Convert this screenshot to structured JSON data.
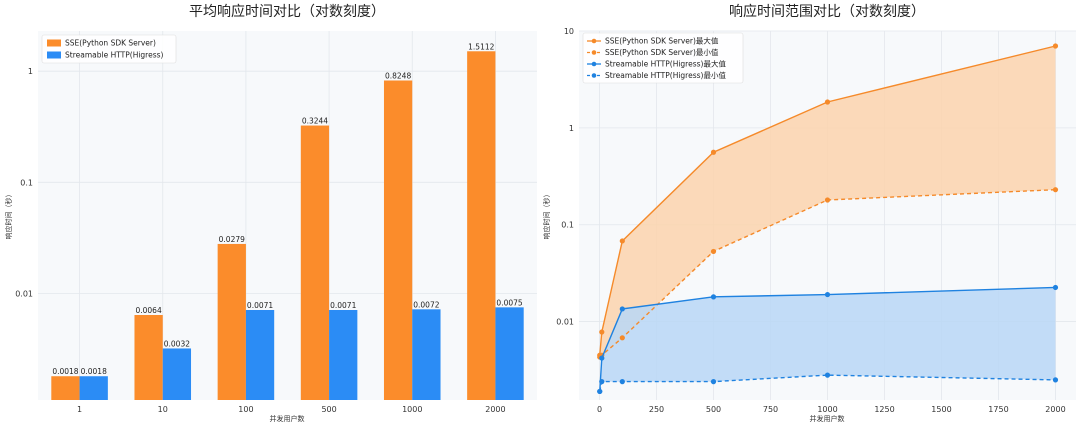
{
  "chart_data": [
    {
      "type": "bar",
      "title": "平均响应时间对比（对数刻度）",
      "xlabel": "并发用户数",
      "ylabel": "响应时间（秒）",
      "yscale": "log",
      "ylim": [
        0.0011,
        2.3
      ],
      "yticks": [
        0.01,
        0.1,
        1
      ],
      "ytick_labels": [
        "0.01",
        "0.1",
        "1"
      ],
      "categories": [
        "1",
        "10",
        "100",
        "500",
        "1000",
        "2000"
      ],
      "series": [
        {
          "name": "SSE(Python SDK Server)",
          "color": "#fb8c2b",
          "values": [
            0.0018,
            0.0064,
            0.0279,
            0.3244,
            0.8248,
            1.5112
          ],
          "labels": [
            "0.0018",
            "0.0064",
            "0.0279",
            "0.3244",
            "0.8248",
            "1.5112"
          ]
        },
        {
          "name": "Streamable HTTP(Higress)",
          "color": "#2b8cf5",
          "values": [
            0.0018,
            0.0032,
            0.0071,
            0.0071,
            0.0072,
            0.0075
          ],
          "labels": [
            "0.0018",
            "0.0032",
            "0.0071",
            "0.0071",
            "0.0072",
            "0.0075"
          ]
        }
      ],
      "grid": true,
      "legend": "top-left"
    },
    {
      "type": "line",
      "title": "响应时间范围对比（对数刻度）",
      "xlabel": "并发用户数",
      "ylabel": "响应时间（秒）",
      "yscale": "log",
      "xlim": [
        -90,
        2090
      ],
      "ylim": [
        0.00155,
        10
      ],
      "xticks": [
        0,
        250,
        500,
        750,
        1000,
        1250,
        1500,
        1750,
        2000
      ],
      "xtick_labels": [
        "0",
        "250",
        "500",
        "750",
        "1000",
        "1250",
        "1500",
        "1750",
        "2000"
      ],
      "yticks": [
        0.01,
        0.1,
        1,
        10
      ],
      "ytick_labels": [
        "0.01",
        "0.1",
        "1",
        "10"
      ],
      "x": [
        1,
        10,
        100,
        500,
        1000,
        2000
      ],
      "series": [
        {
          "name": "SSE(Python SDK Server)最大值",
          "color": "#f58a2a",
          "dash": false,
          "values": [
            0.0045,
            0.0078,
            0.068,
            0.56,
            1.85,
            7.0
          ]
        },
        {
          "name": "SSE(Python SDK Server)最小值",
          "color": "#f58a2a",
          "dash": true,
          "values": [
            0.0043,
            0.0045,
            0.0068,
            0.053,
            0.18,
            0.23
          ]
        },
        {
          "name": "Streamable HTTP(Higress)最大值",
          "color": "#1f82e0",
          "dash": false,
          "values": [
            0.0019,
            0.0042,
            0.0135,
            0.018,
            0.019,
            0.0225
          ]
        },
        {
          "name": "Streamable HTTP(Higress)最小值",
          "color": "#1f82e0",
          "dash": true,
          "values": [
            0.0019,
            0.0024,
            0.0024,
            0.0024,
            0.0028,
            0.0025
          ]
        }
      ],
      "fills": [
        {
          "between": [
            0,
            1
          ],
          "color": "#fbd3ad"
        },
        {
          "between": [
            2,
            3
          ],
          "color": "#b8d7f6"
        }
      ],
      "grid": true,
      "legend": "top-left"
    }
  ]
}
